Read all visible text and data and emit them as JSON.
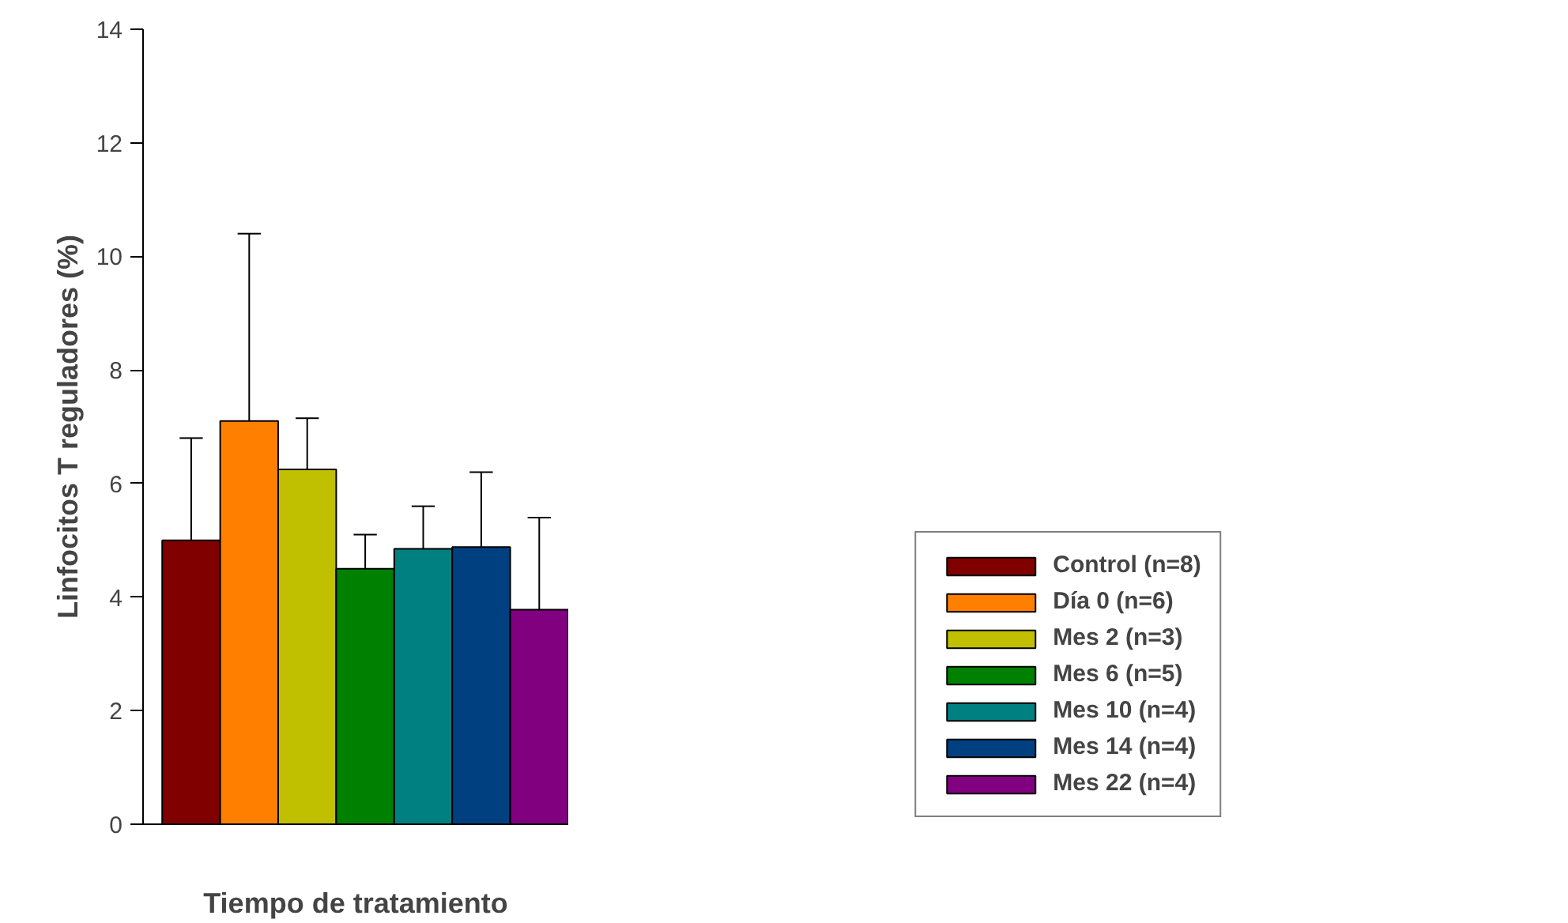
{
  "chart_data": {
    "type": "bar",
    "xlabel": "Tiempo de tratamiento",
    "ylabel": "Linfocitos T reguladores (%)",
    "categories": [
      null,
      null,
      null,
      null,
      null,
      null,
      null
    ],
    "ylim": [
      0,
      14
    ],
    "yticks": [
      0,
      2,
      4,
      6,
      8,
      10,
      12,
      14
    ],
    "grid": false,
    "legend": "right",
    "series": [
      {
        "name": "Control (n=8)",
        "color": "#800000",
        "values": [
          5.0,
          null,
          null,
          null,
          null,
          null,
          null
        ],
        "errors": [
          [
            5.0,
            6.8
          ],
          null,
          null,
          null,
          null,
          null,
          null
        ]
      },
      {
        "name": "Día 0 (n=6)",
        "color": "#ff8000",
        "values": [
          null,
          7.1,
          null,
          null,
          null,
          null,
          null
        ],
        "errors": [
          null,
          [
            7.1,
            10.4
          ],
          null,
          null,
          null,
          null,
          null
        ]
      },
      {
        "name": "Mes 2 (n=3)",
        "color": "#c0c000",
        "values": [
          null,
          null,
          6.25,
          null,
          null,
          null,
          null
        ],
        "errors": [
          null,
          null,
          [
            6.25,
            7.15
          ],
          null,
          null,
          null,
          null
        ]
      },
      {
        "name": "Mes 6 (n=5)",
        "color": "#008000",
        "values": [
          null,
          null,
          null,
          4.5,
          null,
          null,
          null
        ],
        "errors": [
          null,
          null,
          null,
          [
            4.5,
            5.1
          ],
          null,
          null,
          null
        ]
      },
      {
        "name": "Mes 10 (n=4)",
        "color": "#008080",
        "values": [
          null,
          null,
          null,
          null,
          4.85,
          null,
          null
        ],
        "errors": [
          null,
          null,
          null,
          null,
          [
            4.85,
            5.6
          ],
          null,
          null
        ]
      },
      {
        "name": "Mes 14 (n=4)",
        "color": "#004080",
        "values": [
          null,
          null,
          null,
          null,
          null,
          4.88,
          null
        ],
        "errors": [
          null,
          null,
          null,
          null,
          null,
          [
            4.88,
            6.2
          ],
          null
        ]
      },
      {
        "name": "Mes 22 (n=4)",
        "color": "#800080",
        "values": [
          null,
          null,
          null,
          null,
          null,
          null,
          3.78
        ],
        "errors": [
          null,
          null,
          null,
          null,
          null,
          null,
          [
            3.78,
            5.4
          ]
        ]
      }
    ]
  }
}
